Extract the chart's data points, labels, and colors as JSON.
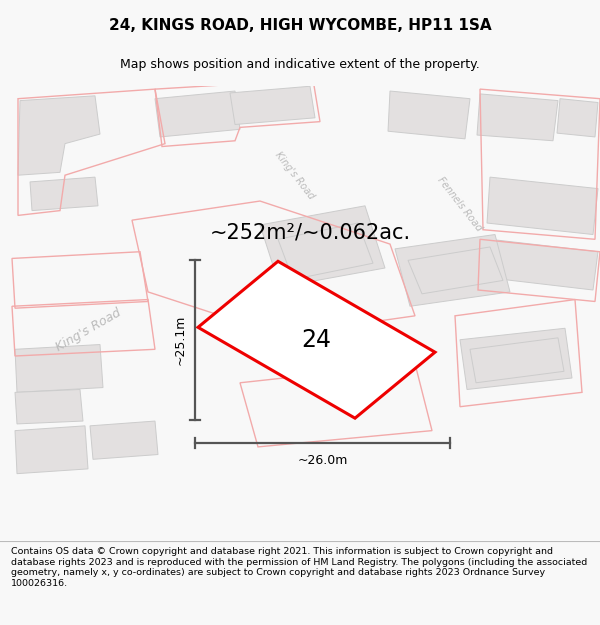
{
  "title": "24, KINGS ROAD, HIGH WYCOMBE, HP11 1SA",
  "subtitle": "Map shows position and indicative extent of the property.",
  "footer": "Contains OS data © Crown copyright and database right 2021. This information is subject to Crown copyright and database rights 2023 and is reproduced with the permission of HM Land Registry. The polygons (including the associated geometry, namely x, y co-ordinates) are subject to Crown copyright and database rights 2023 Ordnance Survey 100026316.",
  "area_label": "~252m²/~0.062ac.",
  "number_label": "24",
  "width_label": "~26.0m",
  "height_label": "~25.1m",
  "map_bg": "#f7f6f6",
  "building_fill": "#e3e0e0",
  "building_edge": "#cccccc",
  "road_fill": "#fafafa",
  "pink_color": "#f2aaaa",
  "red_color": "#ee0000",
  "text_color": "#555555",
  "measure_color": "#555555",
  "road_label_color": "#bbbbbb",
  "title_fontsize": 11,
  "subtitle_fontsize": 9,
  "footer_fontsize": 6.8,
  "area_fontsize": 15,
  "number_fontsize": 17,
  "measure_fontsize": 9,
  "road_label_fontsize": 9
}
